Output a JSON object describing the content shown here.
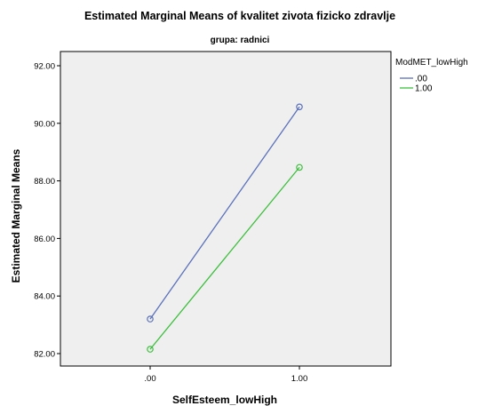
{
  "chart_data": {
    "type": "line",
    "title": "Estimated Marginal Means of kvalitet zivota fizicko zdravlje",
    "subtitle": "grupa: radnici",
    "xlabel": "SelfEsteem_lowHigh",
    "ylabel": "Estimated Marginal Means",
    "categories": [
      ".00",
      "1.00"
    ],
    "ylim": [
      82.0,
      92.0
    ],
    "yticks": [
      "82.00",
      "84.00",
      "86.00",
      "88.00",
      "90.00",
      "92.00"
    ],
    "grid": false,
    "legend": {
      "title": "ModMET_lowHigh",
      "placement": "top-right"
    },
    "series": [
      {
        "name": ".00",
        "values": [
          83.2,
          90.57
        ],
        "color": "#5b71bb"
      },
      {
        "name": "1.00",
        "values": [
          82.15,
          88.47
        ],
        "color": "#3dbf3d"
      }
    ],
    "plot_background": "#efefef",
    "marker": "open-circle"
  }
}
